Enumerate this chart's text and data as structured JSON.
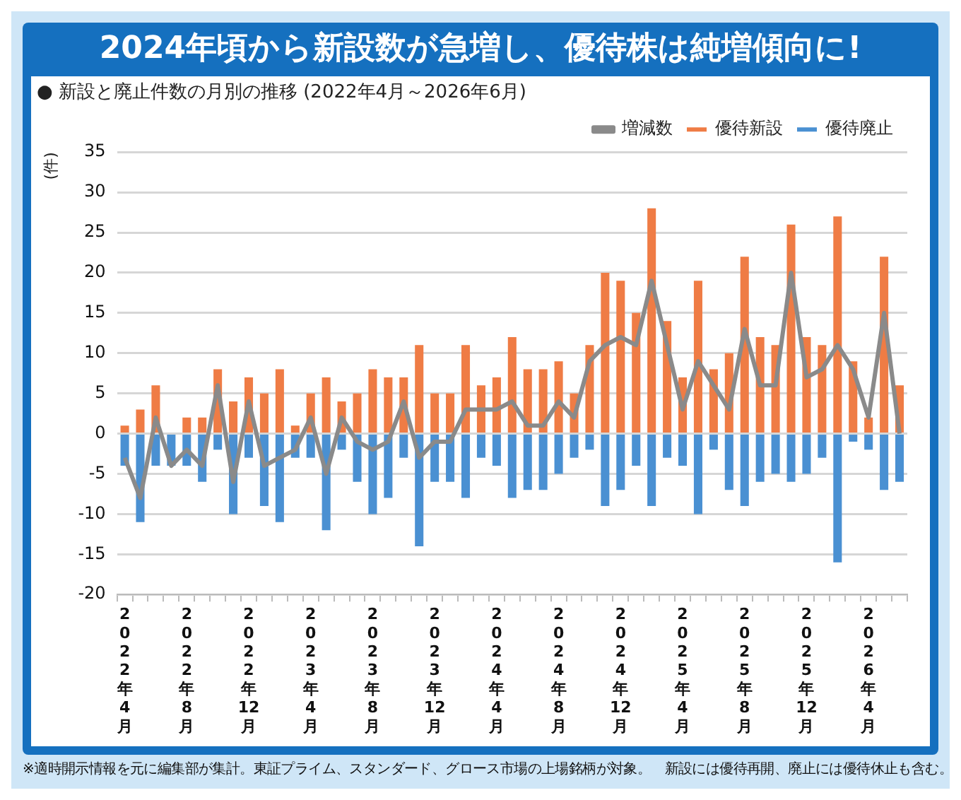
{
  "chart_data": {
    "type": "bar",
    "title": "2024年頃から新設数が急増し、優待株は純増傾向に!",
    "subtitle": "● 新設と廃止件数の月別の推移 (2022年4月～2026年6月)",
    "ylabel": "(件)",
    "categories": [
      "2022年4月",
      null,
      null,
      null,
      "2022年8月",
      null,
      null,
      null,
      "2022年12月",
      null,
      null,
      null,
      "2023年4月",
      null,
      null,
      null,
      "2023年8月",
      null,
      null,
      null,
      "2023年12月",
      null,
      null,
      null,
      "2024年4月",
      null,
      null,
      null,
      "2024年8月",
      null,
      null,
      null,
      "2024年12月",
      null,
      null,
      null,
      "2025年4月",
      null,
      null,
      null,
      "2025年8月",
      null,
      null,
      null,
      "2025年12月",
      null,
      null,
      null,
      "2026年4月",
      null,
      null
    ],
    "series": [
      {
        "name": "優待新設",
        "color": "#ef7c45",
        "values": [
          1,
          3,
          6,
          0,
          2,
          2,
          8,
          4,
          7,
          5,
          8,
          1,
          5,
          7,
          4,
          5,
          8,
          7,
          7,
          11,
          5,
          5,
          11,
          6,
          7,
          12,
          8,
          8,
          9,
          5,
          11,
          20,
          19,
          15,
          28,
          14,
          7,
          19,
          8,
          10,
          22,
          12,
          11,
          26,
          12,
          11,
          27,
          9,
          2,
          22,
          6
        ]
      },
      {
        "name": "優待廃止",
        "color": "#4a90d2",
        "values": [
          -4,
          -11,
          -4,
          -4,
          -4,
          -6,
          -2,
          -10,
          -3,
          -9,
          -11,
          -3,
          -3,
          -12,
          -2,
          -6,
          -10,
          -8,
          -3,
          -14,
          -6,
          -6,
          -8,
          -3,
          -4,
          -8,
          -7,
          -7,
          -5,
          -3,
          -2,
          -9,
          -7,
          -4,
          -9,
          -3,
          -4,
          -10,
          -2,
          -7,
          -9,
          -6,
          -5,
          -6,
          -5,
          -3,
          -16,
          -1,
          -2,
          -7,
          -6
        ]
      },
      {
        "name": "増減数",
        "type": "line",
        "color": "#8a8a8a",
        "values": [
          -3,
          -8,
          2,
          -4,
          -2,
          -4,
          6,
          -6,
          4,
          -4,
          -3,
          -2,
          2,
          -5,
          2,
          -1,
          -2,
          -1,
          4,
          -3,
          -1,
          -1,
          3,
          3,
          3,
          4,
          1,
          1,
          4,
          2,
          9,
          11,
          12,
          11,
          19,
          11,
          3,
          9,
          6,
          3,
          13,
          6,
          6,
          20,
          7,
          8,
          11,
          8,
          2,
          15,
          0
        ]
      }
    ],
    "stacked": true,
    "ylim": [
      -20,
      35
    ],
    "yticks": [
      -20,
      -15,
      -10,
      -5,
      0,
      5,
      10,
      15,
      20,
      25,
      30,
      35
    ],
    "grid": "y",
    "legend": "top right",
    "marker": "none",
    "line_style": "solid",
    "annotations": [
      "※適時開示情報を元に編集部が集計。東証プライム、スタンダード、グロース市場の上場銘柄が対象。　新設には優待再開、廃止には優待休止も含む。"
    ]
  }
}
